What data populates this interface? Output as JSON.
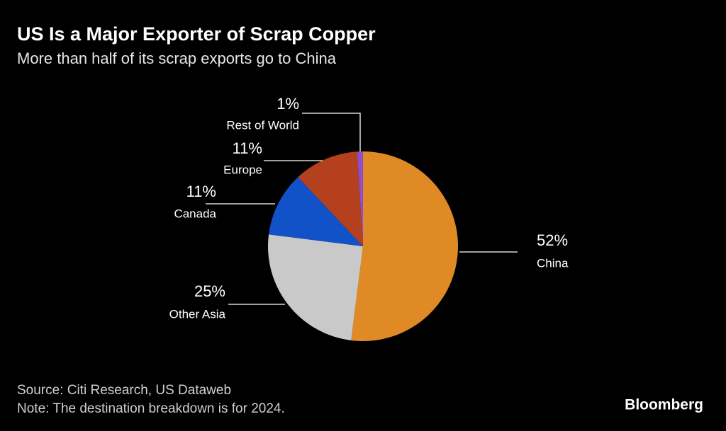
{
  "chart_data": {
    "type": "pie",
    "title": "US Is a Major Exporter of Scrap Copper",
    "subtitle": "More than half of its scrap exports go to China",
    "categories": [
      "China",
      "Other Asia",
      "Canada",
      "Europe",
      "Rest of World"
    ],
    "values": [
      52,
      25,
      11,
      11,
      1
    ],
    "value_labels": [
      "52%",
      "25%",
      "11%",
      "11%",
      "1%"
    ],
    "colors": [
      "#e08a25",
      "#c9c9c9",
      "#1152c8",
      "#b5401d",
      "#8e4fc9"
    ],
    "source": "Source: Citi Research, US Dataweb",
    "note": "Note: The destination breakdown is for 2024."
  },
  "brand": "Bloomberg"
}
